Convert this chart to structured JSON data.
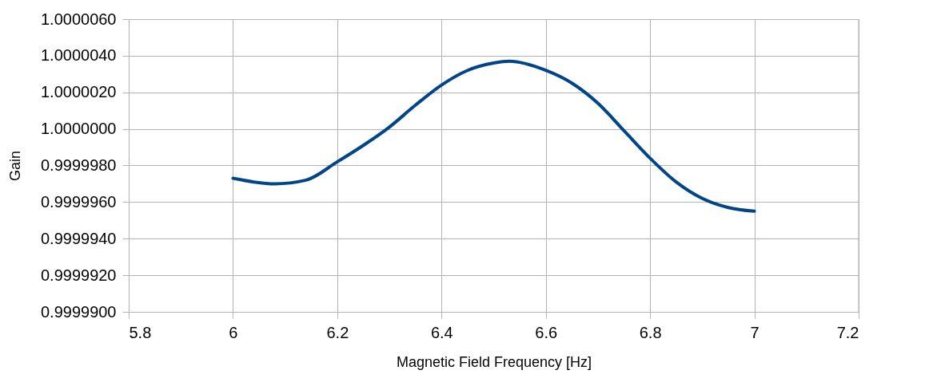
{
  "chart_data": {
    "type": "line",
    "xlabel": "Magnetic Field Frequency [Hz]",
    "ylabel": "Gain",
    "x": [
      6.0,
      6.04,
      6.08,
      6.14,
      6.2,
      6.25,
      6.3,
      6.35,
      6.4,
      6.45,
      6.5,
      6.53,
      6.6,
      6.65,
      6.7,
      6.75,
      6.8,
      6.85,
      6.9,
      6.95,
      7.0
    ],
    "series": [
      {
        "color": "#004586",
        "values": [
          0.9999973,
          0.9999971,
          0.999997,
          0.9999972,
          0.9999982,
          0.9999991,
          1.0000001,
          1.0000013,
          1.0000024,
          1.0000032,
          1.0000036,
          1.0000037,
          1.0000032,
          1.0000025,
          1.0000014,
          0.9999999,
          0.9999984,
          0.9999971,
          0.9999962,
          0.9999957,
          0.9999955
        ]
      }
    ],
    "xlim": [
      5.8,
      7.2
    ],
    "xticks": [
      5.8,
      6,
      6.2,
      6.4,
      6.6,
      6.8,
      7,
      7.2
    ],
    "ylim": [
      0.99999,
      1.000006
    ],
    "yticks": [
      {
        "value": 0.99999,
        "label": "0.9999900"
      },
      {
        "value": 0.999992,
        "label": "0.9999920"
      },
      {
        "value": 0.999994,
        "label": "0.9999940"
      },
      {
        "value": 0.999996,
        "label": "0.9999960"
      },
      {
        "value": 0.999998,
        "label": "0.9999980"
      },
      {
        "value": 1.0,
        "label": "1.0000000"
      },
      {
        "value": 1.000002,
        "label": "1.0000020"
      },
      {
        "value": 1.000004,
        "label": "1.0000040"
      },
      {
        "value": 1.000006,
        "label": "1.0000060"
      }
    ],
    "grid": true,
    "legend": false,
    "marker": "none",
    "line_style": "solid"
  }
}
